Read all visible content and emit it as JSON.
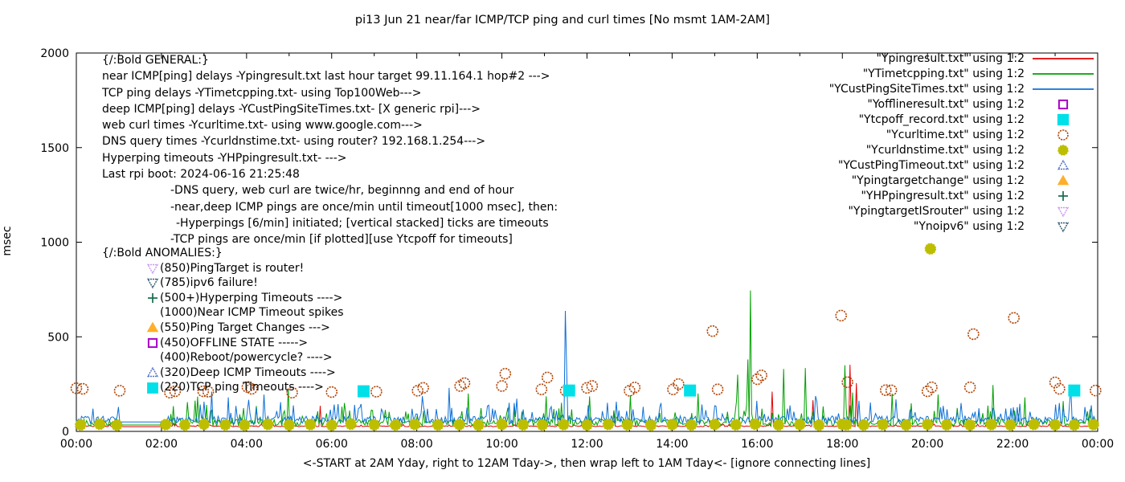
{
  "title": "pi13 Jun 21  near/far ICMP/TCP ping and curl times [No msmt 1AM-2AM]",
  "axes": {
    "y_label": "msec",
    "x_label": "<-START at 2AM Yday, right to 12AM Tday->, then wrap left to 1AM Tday<- [ignore connecting lines]",
    "x_ticks": [
      "00:00",
      "02:00",
      "04:00",
      "06:00",
      "08:00",
      "10:00",
      "12:00",
      "14:00",
      "16:00",
      "18:00",
      "20:00",
      "22:00",
      "00:00"
    ],
    "y_ticks": [
      0,
      500,
      1000,
      1500,
      2000
    ],
    "x_range_hours": [
      0,
      24
    ],
    "y_range_msec": [
      0,
      2000
    ]
  },
  "general_block": {
    "lines": [
      {
        "text": "{/:Bold GENERAL:}",
        "indent": 0
      },
      {
        "text": "near ICMP[ping] delays -Ypingresult.txt last hour target 99.11.164.1 hop#2 --->",
        "indent": 0
      },
      {
        "text": "TCP ping delays -YTimetcpping.txt- using Top100Web--->",
        "indent": 0
      },
      {
        "text": "deep ICMP[ping] delays -YCustPingSiteTimes.txt- [X generic rpi]--->",
        "indent": 0
      },
      {
        "text": "web curl times -Ycurltime.txt- using www.google.com--->",
        "indent": 0
      },
      {
        "text": "DNS query times -Ycurldnstime.txt- using router? 192.168.1.254--->",
        "indent": 0
      },
      {
        "text": "Hyperping timeouts -YHPpingresult.txt- --->",
        "indent": 0
      },
      {
        "text": "Last rpi boot: 2024-06-16 21:25:48",
        "indent": 0
      },
      {
        "text": "-DNS query, web curl are twice/hr, beginnng and end of hour",
        "indent": 85
      },
      {
        "text": "-near,deep ICMP pings are once/min until timeout[1000 msec], then:",
        "indent": 85
      },
      {
        "text": "-Hyperpings [6/min] initiated; [vertical stacked] ticks are timeouts",
        "indent": 92
      },
      {
        "text": "-TCP pings are once/min [if plotted][use Ytcpoff for timeouts]",
        "indent": 85
      }
    ]
  },
  "anomalies_block": {
    "header": "{/:Bold ANOMALIES:}",
    "items": [
      {
        "marker": "triangle-down-open",
        "color": "#c897f0",
        "text": "(850)PingTarget is router!"
      },
      {
        "marker": "triangle-down-open",
        "color": "#2e5a70",
        "text": "(785)ipv6 failure!"
      },
      {
        "marker": "plus",
        "color": "#166b4b",
        "text": "(500+)Hyperping Timeouts ---->"
      },
      {
        "marker": null,
        "color": null,
        "text": "(1000)Near ICMP Timeout spikes"
      },
      {
        "marker": "triangle-up-filled",
        "color": "#ffaf2a",
        "text": "(550)Ping Target Changes --->"
      },
      {
        "marker": "square-open",
        "color": "#a800c8",
        "text": "(450)OFFLINE STATE ----->"
      },
      {
        "marker": null,
        "color": null,
        "text": "(400)Reboot/powercycle? ---->"
      },
      {
        "marker": "triangle-up-open",
        "color": "#5070c8",
        "text": "(320)Deep ICMP Timeouts ---->"
      },
      {
        "marker": "square-filled",
        "color": "#00e0e8",
        "text": "(220)TCP ping Timeouts ---->"
      }
    ]
  },
  "legend": {
    "items": [
      {
        "label": "\"Ypingresult.txt\" using 1:2",
        "marker": "line",
        "color": "#e00000"
      },
      {
        "label": "\"YTimetcpping.txt\" using 1:2",
        "marker": "line",
        "color": "#00a000"
      },
      {
        "label": "\"YCustPingSiteTimes.txt\" using 1:2",
        "marker": "line",
        "color": "#0e70d8"
      },
      {
        "label": "\"Yofflineresult.txt\" using 1:2",
        "marker": "square-open",
        "color": "#a800c8"
      },
      {
        "label": "\"Ytcpoff_record.txt\" using 1:2",
        "marker": "square-filled",
        "color": "#00e0e8"
      },
      {
        "label": "\"Ycurltime.txt\" using 1:2",
        "marker": "circle-open",
        "color": "#b44a0c"
      },
      {
        "label": "\"Ycurldnstime.txt\" using 1:2",
        "marker": "circle-filled",
        "color": "#bebe00"
      },
      {
        "label": "\"YCustPingTimeout.txt\" using 1:2",
        "marker": "triangle-up-open",
        "color": "#5070c8"
      },
      {
        "label": "\"Ypingtargetchange\" using 1:2",
        "marker": "triangle-up-filled",
        "color": "#ffaf2a"
      },
      {
        "label": "\"YHPpingresult.txt\" using 1:2",
        "marker": "plus",
        "color": "#166b4b"
      },
      {
        "label": "\"YpingtargetISrouter\" using 1:2",
        "marker": "triangle-down-open",
        "color": "#c897f0"
      },
      {
        "label": "\"Ynoipv6\" using 1:2",
        "marker": "triangle-down-open",
        "color": "#2e5a70"
      }
    ]
  },
  "chart_data": {
    "type": "line+scatter",
    "x_unit": "hour of day (00:00-24:00)",
    "y_unit": "msec",
    "xlim": [
      0,
      24
    ],
    "ylim": [
      0,
      2000
    ],
    "no_measurement_gap_hours": [
      1.0,
      2.08
    ],
    "line_series": [
      {
        "name": "Ypingresult.txt",
        "color": "#e00000",
        "baseline": 25,
        "noise_to": 38,
        "gap_level": 25,
        "spikes": [
          [
            5.72,
            135
          ],
          [
            12.62,
            106
          ],
          [
            16.35,
            210
          ],
          [
            17.3,
            165
          ],
          [
            18.17,
            352
          ],
          [
            18.33,
            255
          ]
        ]
      },
      {
        "name": "YTimetcpping.txt",
        "color": "#00a000",
        "baseline": 28,
        "noise_to": 130,
        "gap_level": 34,
        "spikes": [
          [
            3.05,
            140
          ],
          [
            4.97,
            225
          ],
          [
            6.3,
            150
          ],
          [
            9.2,
            200
          ],
          [
            11.05,
            185
          ],
          [
            12.07,
            185
          ],
          [
            13.02,
            190
          ],
          [
            14.6,
            200
          ],
          [
            15.55,
            300
          ],
          [
            15.79,
            380
          ],
          [
            15.83,
            745
          ],
          [
            16.62,
            330
          ],
          [
            17.13,
            335
          ],
          [
            18.05,
            350
          ],
          [
            18.25,
            205
          ],
          [
            19.17,
            200
          ],
          [
            20.25,
            195
          ],
          [
            21.55,
            245
          ],
          [
            22.3,
            180
          ],
          [
            23.2,
            160
          ]
        ]
      },
      {
        "name": "YCustPingSiteTimes.txt",
        "color": "#0e70d8",
        "baseline": 42,
        "noise_to": 150,
        "gap_level": 50,
        "spikes": [
          [
            0.4,
            120
          ],
          [
            3.17,
            210
          ],
          [
            4.42,
            195
          ],
          [
            6.55,
            140
          ],
          [
            8.75,
            230
          ],
          [
            10.3,
            150
          ],
          [
            11.48,
            637
          ],
          [
            11.53,
            348
          ],
          [
            13.75,
            150
          ],
          [
            17.4,
            160
          ],
          [
            20.8,
            150
          ],
          [
            23.1,
            150
          ]
        ]
      }
    ],
    "scatter_series": [
      {
        "name": "Ycurltime.txt",
        "marker": "circle-open",
        "color": "#b44a0c",
        "points": [
          [
            0.0,
            228
          ],
          [
            0.15,
            225
          ],
          [
            1.02,
            215
          ],
          [
            2.2,
            205
          ],
          [
            2.32,
            212
          ],
          [
            2.98,
            212
          ],
          [
            3.1,
            210
          ],
          [
            4.02,
            235
          ],
          [
            4.12,
            225
          ],
          [
            5.07,
            205
          ],
          [
            6.0,
            208
          ],
          [
            7.05,
            210
          ],
          [
            8.02,
            215
          ],
          [
            8.15,
            230
          ],
          [
            9.02,
            240
          ],
          [
            9.12,
            255
          ],
          [
            10.0,
            240
          ],
          [
            10.08,
            305
          ],
          [
            10.93,
            222
          ],
          [
            11.07,
            285
          ],
          [
            11.5,
            215
          ],
          [
            12.0,
            230
          ],
          [
            12.12,
            240
          ],
          [
            13.0,
            215
          ],
          [
            13.12,
            232
          ],
          [
            14.02,
            222
          ],
          [
            14.15,
            250
          ],
          [
            14.95,
            530
          ],
          [
            15.07,
            222
          ],
          [
            16.0,
            276
          ],
          [
            16.1,
            296
          ],
          [
            17.97,
            612
          ],
          [
            18.12,
            260
          ],
          [
            19.02,
            218
          ],
          [
            19.15,
            217
          ],
          [
            20.0,
            212
          ],
          [
            20.1,
            233
          ],
          [
            21.0,
            233
          ],
          [
            21.08,
            514
          ],
          [
            22.03,
            600
          ],
          [
            23.0,
            259
          ],
          [
            23.1,
            225
          ],
          [
            23.95,
            216
          ]
        ]
      },
      {
        "name": "Ytcpoff_record.txt",
        "marker": "square-filled",
        "color": "#00e0e8",
        "points": [
          [
            6.75,
            212
          ],
          [
            11.58,
            216
          ],
          [
            14.42,
            216
          ],
          [
            23.45,
            216
          ]
        ]
      },
      {
        "name": "Ycurldnstime.txt",
        "marker": "circle-filled",
        "color": "#bebe00",
        "points": [
          [
            0.1,
            34
          ],
          [
            0.55,
            38
          ],
          [
            0.95,
            33
          ],
          [
            2.1,
            36
          ],
          [
            2.55,
            34
          ],
          [
            3.0,
            38
          ],
          [
            3.5,
            35
          ],
          [
            3.95,
            33
          ],
          [
            4.5,
            37
          ],
          [
            5.0,
            34
          ],
          [
            5.5,
            36
          ],
          [
            6.0,
            33
          ],
          [
            6.45,
            38
          ],
          [
            7.0,
            35
          ],
          [
            7.5,
            34
          ],
          [
            7.95,
            37
          ],
          [
            8.5,
            34
          ],
          [
            9.0,
            36
          ],
          [
            9.45,
            33
          ],
          [
            10.0,
            37
          ],
          [
            10.5,
            35
          ],
          [
            10.95,
            34
          ],
          [
            11.45,
            36
          ],
          [
            12.0,
            34
          ],
          [
            12.5,
            37
          ],
          [
            12.95,
            35
          ],
          [
            13.5,
            33
          ],
          [
            14.0,
            36
          ],
          [
            14.45,
            34
          ],
          [
            15.0,
            37
          ],
          [
            15.5,
            35
          ],
          [
            15.95,
            38
          ],
          [
            16.5,
            34
          ],
          [
            17.0,
            36
          ],
          [
            17.45,
            33
          ],
          [
            18.0,
            37
          ],
          [
            18.1,
            35
          ],
          [
            18.5,
            34
          ],
          [
            18.95,
            36
          ],
          [
            19.5,
            34
          ],
          [
            20.0,
            37
          ],
          [
            20.07,
            965
          ],
          [
            20.45,
            35
          ],
          [
            21.0,
            34
          ],
          [
            21.5,
            36
          ],
          [
            21.95,
            34
          ],
          [
            22.5,
            37
          ],
          [
            23.0,
            35
          ],
          [
            23.45,
            34
          ],
          [
            23.9,
            36
          ]
        ]
      },
      {
        "name": "Yofflineresult.txt",
        "marker": "square-open",
        "color": "#a800c8",
        "points": []
      },
      {
        "name": "YCustPingTimeout.txt",
        "marker": "triangle-up-open",
        "color": "#5070c8",
        "points": []
      },
      {
        "name": "Ypingtargetchange",
        "marker": "triangle-up-filled",
        "color": "#ffaf2a",
        "points": []
      },
      {
        "name": "YHPpingresult.txt",
        "marker": "plus",
        "color": "#166b4b",
        "points": []
      },
      {
        "name": "YpingtargetISrouter",
        "marker": "triangle-down-open",
        "color": "#c897f0",
        "points": []
      },
      {
        "name": "Ynoipv6",
        "marker": "triangle-down-open",
        "color": "#2e5a70",
        "points": []
      }
    ]
  }
}
